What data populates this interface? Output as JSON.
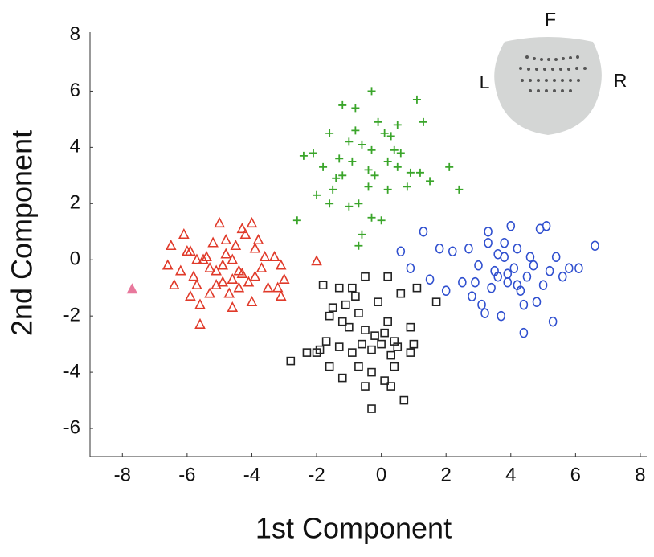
{
  "chart_data": {
    "type": "scatter",
    "x_label": "1st Component",
    "y_label": "2nd Component",
    "xlim": [
      -9,
      8.2
    ],
    "ylim": [
      -7,
      8.1
    ],
    "xticks": [
      -8,
      -6,
      -4,
      -2,
      0,
      2,
      4,
      6,
      8
    ],
    "yticks": [
      -6,
      -4,
      -2,
      0,
      2,
      4,
      6,
      8
    ],
    "annotations": [
      "F",
      "L",
      "R"
    ],
    "series": [
      {
        "marker": "triangle",
        "color": "#e03a2a",
        "x": [
          -6.6,
          -6.4,
          -6.1,
          -6.0,
          -5.9,
          -5.8,
          -5.7,
          -5.6,
          -5.5,
          -5.4,
          -5.3,
          -5.2,
          -5.1,
          -5.0,
          -4.9,
          -4.8,
          -4.7,
          -4.6,
          -4.5,
          -4.4,
          -4.3,
          -4.2,
          -4.1,
          -4.0,
          -3.9,
          -3.8,
          -3.7,
          -3.6,
          -3.5,
          -3.3,
          -3.2,
          -3.1,
          -3.1,
          -3.0,
          -2.0,
          -5.6,
          -4.6,
          -5.3,
          -4.0,
          -3.9,
          -5.9,
          -4.8,
          -5.1,
          -4.6,
          -4.3,
          -6.2,
          -6.5,
          -5.7,
          -4.4,
          -4.9
        ],
        "y": [
          -0.2,
          -0.9,
          0.9,
          0.3,
          0.3,
          -0.6,
          -0.9,
          -1.6,
          0,
          0.1,
          -0.3,
          0.6,
          -0.9,
          1.3,
          -0.8,
          0.2,
          -1.2,
          -0.7,
          0.5,
          -0.4,
          1.1,
          0.9,
          -0.8,
          -1.5,
          0.4,
          0.7,
          -0.3,
          0.1,
          -1.0,
          0.1,
          -1.0,
          -1.3,
          -0.2,
          -0.7,
          -0.05,
          -2.3,
          -1.7,
          -1.2,
          1.3,
          -0.6,
          -1.3,
          0.7,
          -0.4,
          0.0,
          -0.5,
          -0.4,
          0.5,
          0.0,
          -1.0,
          -0.2
        ]
      },
      {
        "marker": "triangle",
        "color": "#e8789c",
        "x": [
          -7.7
        ],
        "y": [
          -1.05
        ]
      },
      {
        "marker": "plus",
        "color": "#3aa52a",
        "x": [
          1.1,
          -0.3,
          -1.2,
          -0.8,
          -0.1,
          0.5,
          0.3,
          1.3,
          -1.6,
          -1.0,
          -0.6,
          -0.3,
          0.6,
          -2.4,
          -2.1,
          -1.8,
          -1.4,
          -1.2,
          -0.9,
          -0.4,
          -0.2,
          0.2,
          0.5,
          0.9,
          1.2,
          1.5,
          2.1,
          2.4,
          -2.0,
          -1.6,
          -1.0,
          -0.7,
          -0.4,
          0.2,
          0.8,
          -2.6,
          -0.3,
          0.0,
          -0.6,
          -0.7,
          -1.5,
          0.1,
          -0.8,
          0.4,
          -1.3
        ],
        "y": [
          5.7,
          6.0,
          5.5,
          5.4,
          4.9,
          4.8,
          4.4,
          4.9,
          4.5,
          4.2,
          4.1,
          3.9,
          3.8,
          3.7,
          3.8,
          3.3,
          2.9,
          3.0,
          3.5,
          3.2,
          3.0,
          3.5,
          3.3,
          3.1,
          3.1,
          2.8,
          3.3,
          2.5,
          2.3,
          2.0,
          1.9,
          2.0,
          2.6,
          2.5,
          2.6,
          1.4,
          1.5,
          1.4,
          0.9,
          0.5,
          2.5,
          4.5,
          4.6,
          3.9,
          3.6
        ]
      },
      {
        "marker": "square",
        "color": "#222222",
        "x": [
          -2.8,
          -2.3,
          -2.0,
          -1.8,
          -1.3,
          -0.9,
          -0.5,
          0.2,
          1.1,
          1.7,
          -1.5,
          -1.1,
          -0.7,
          -1.6,
          -1.0,
          -0.5,
          -0.2,
          0.1,
          0.4,
          0.9,
          1.0,
          -1.7,
          -1.3,
          -0.9,
          -0.6,
          -0.3,
          0.0,
          0.3,
          0.5,
          0.9,
          -1.6,
          -1.2,
          -0.7,
          -0.3,
          0.1,
          0.4,
          -0.5,
          0.3,
          0.7,
          -0.3,
          -1.9,
          -0.8,
          -1.2,
          0.6,
          -0.1,
          0.2
        ],
        "y": [
          -3.6,
          -3.3,
          -3.3,
          -0.9,
          -1.0,
          -1.0,
          -0.6,
          -0.6,
          -1.0,
          -1.5,
          -1.7,
          -1.6,
          -1.9,
          -2.0,
          -2.4,
          -2.5,
          -2.7,
          -2.6,
          -2.9,
          -2.4,
          -3.0,
          -2.9,
          -3.1,
          -3.3,
          -3.0,
          -3.2,
          -3.0,
          -3.4,
          -3.1,
          -3.3,
          -3.8,
          -4.2,
          -3.8,
          -4.0,
          -4.3,
          -3.8,
          -4.5,
          -4.5,
          -5.0,
          -5.3,
          -3.2,
          -1.3,
          -2.2,
          -1.2,
          -1.5,
          -2.2
        ]
      },
      {
        "marker": "circle",
        "color": "#2f4fcf",
        "x": [
          0.6,
          1.3,
          0.9,
          1.5,
          1.8,
          2.0,
          2.2,
          2.5,
          2.7,
          2.8,
          3.0,
          3.1,
          3.3,
          3.3,
          3.4,
          3.5,
          3.6,
          3.7,
          3.8,
          3.9,
          4.0,
          4.1,
          4.2,
          4.3,
          4.4,
          4.4,
          4.5,
          4.6,
          4.7,
          4.9,
          5.0,
          5.1,
          5.2,
          5.3,
          5.4,
          5.6,
          5.8,
          6.1,
          6.6,
          3.9,
          3.2,
          4.8,
          4.2,
          3.6,
          2.9,
          3.8
        ],
        "y": [
          0.3,
          1.0,
          -0.3,
          -0.7,
          0.4,
          -1.1,
          0.3,
          -0.8,
          0.4,
          -1.3,
          -0.2,
          -1.6,
          0.6,
          1.0,
          -1.0,
          -0.4,
          0.2,
          -2.0,
          0.6,
          -0.8,
          1.2,
          -0.3,
          0.4,
          -1.1,
          -1.6,
          -2.6,
          -0.6,
          0.1,
          -0.2,
          1.1,
          -0.9,
          1.2,
          -0.4,
          -2.2,
          0.1,
          -0.6,
          -0.3,
          -0.3,
          0.5,
          -0.5,
          -1.9,
          -1.5,
          -0.9,
          -0.6,
          -0.8,
          0.1
        ]
      }
    ]
  }
}
